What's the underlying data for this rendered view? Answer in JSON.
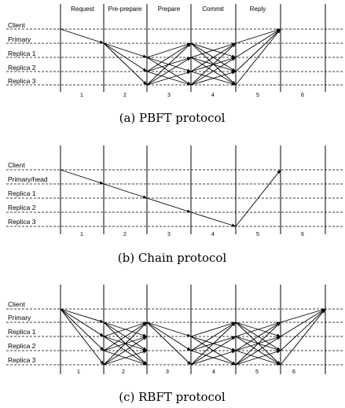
{
  "figures": [
    {
      "id": "pbft",
      "caption": "(a) PBFT protocol",
      "rows": [
        "Client",
        "Primary",
        "Replica 1",
        "Replica 2",
        "Replica 3"
      ],
      "phases": [
        "Request",
        "Pre-prepare",
        "Prepare",
        "Commit",
        "Reply"
      ],
      "step_numbers": [
        "1",
        "2",
        "3",
        "4",
        "5",
        "6"
      ]
    },
    {
      "id": "chain",
      "caption": "(b) Chain protocol",
      "rows": [
        "Client",
        "Primary/head",
        "Replica 1",
        "Replica 2",
        "Replica 3"
      ],
      "phases": [],
      "step_numbers": [
        "1",
        "2",
        "3",
        "4",
        "5",
        "6"
      ]
    },
    {
      "id": "rbft",
      "caption": "(c) RBFT protocol",
      "rows": [
        "Client",
        "Primary",
        "Replica 1",
        "Replica 2",
        "Replica 3"
      ],
      "phases": [],
      "step_numbers": [
        "1",
        "2",
        "3",
        "4",
        "5",
        "6"
      ]
    }
  ]
}
